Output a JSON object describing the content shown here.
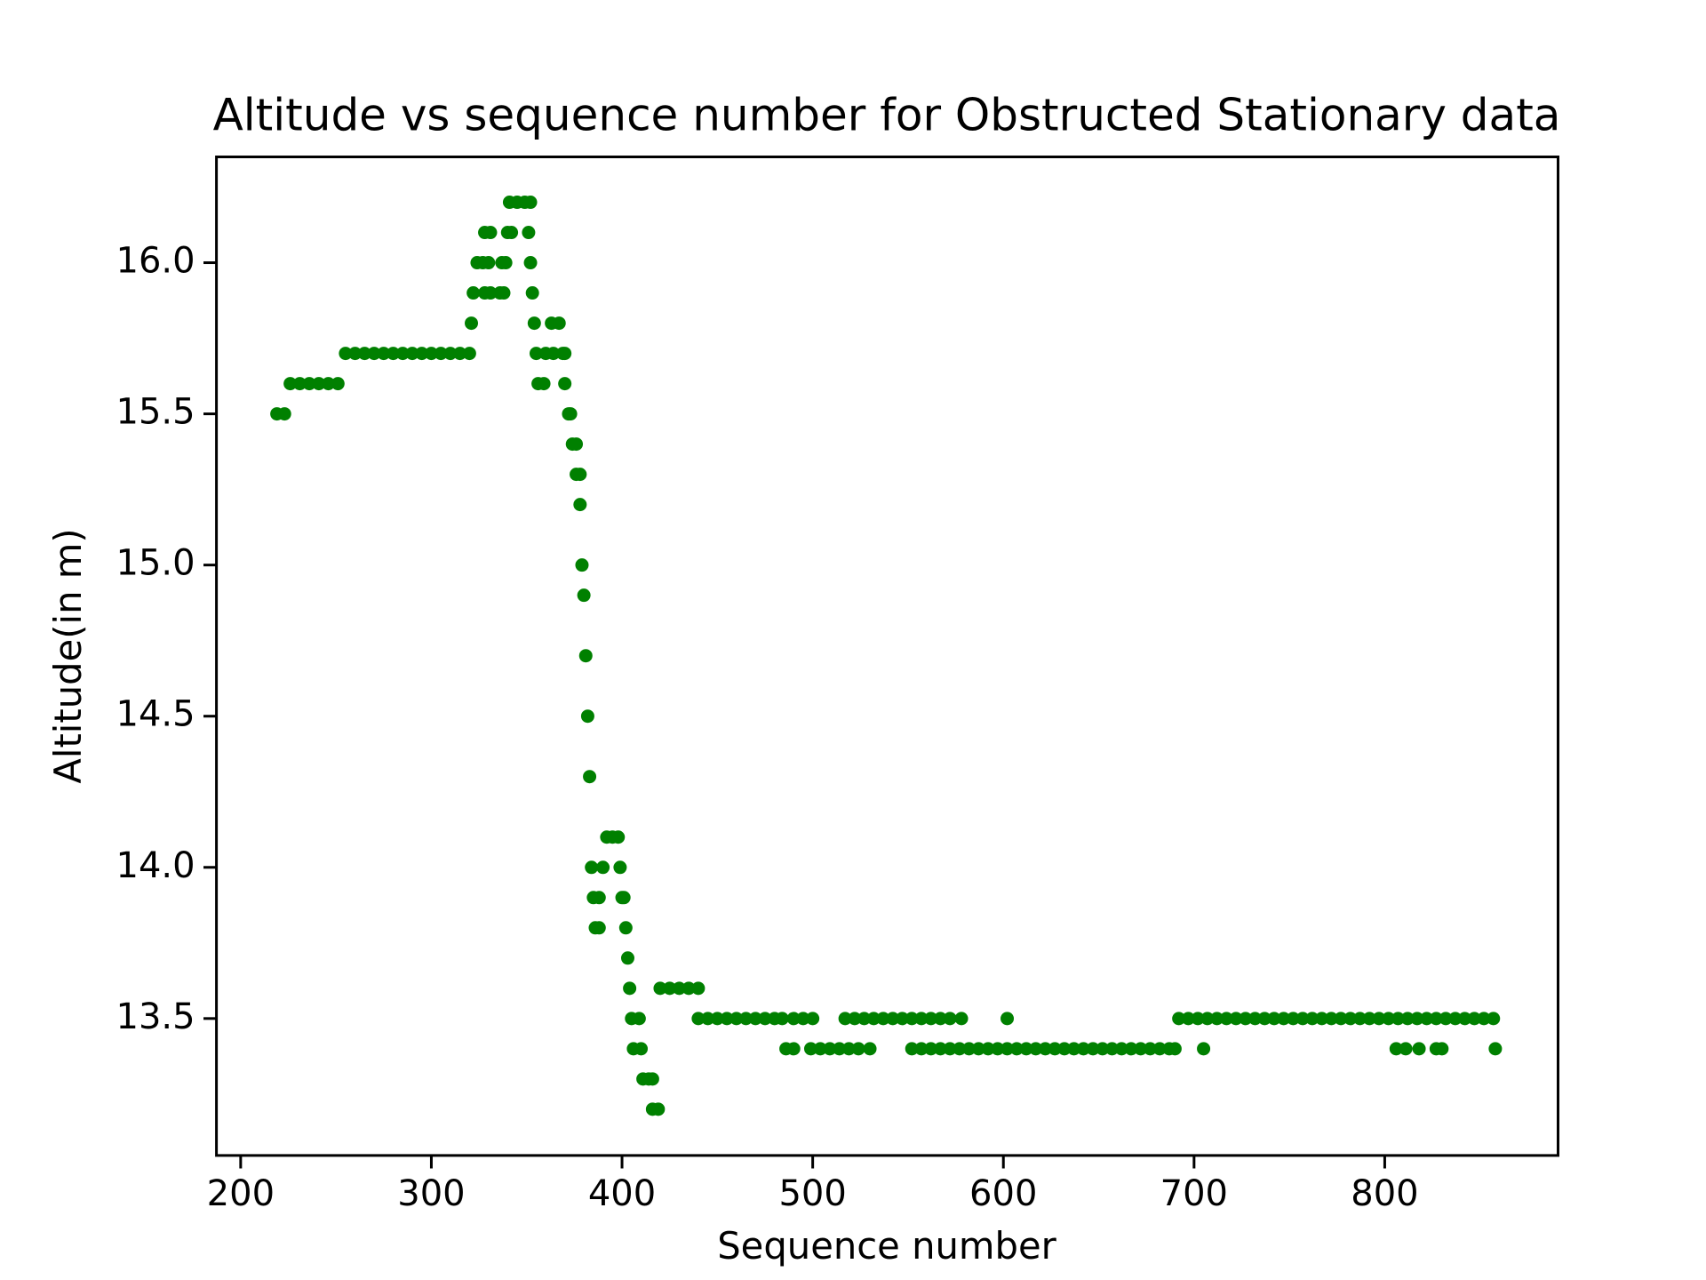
{
  "chart_data": {
    "type": "scatter",
    "title": "Altitude vs sequence number for Obstructed Stationary data",
    "x_label": "Sequence number",
    "y_label": "Altitude(in m)",
    "color": "#008000",
    "xlim": [
      187.3,
      890.9
    ],
    "ylim": [
      13.047,
      16.35
    ],
    "xticks": [
      200,
      300,
      400,
      500,
      600,
      700,
      800
    ],
    "yticks": [
      13.5,
      {
        "value": 14,
        "label": "14.0"
      },
      14.5,
      {
        "value": 15,
        "label": "15.0"
      },
      15.5,
      {
        "value": 16,
        "label": "16.0"
      }
    ],
    "x": [
      219,
      223,
      226,
      231,
      236,
      241,
      246,
      251,
      255,
      260,
      265,
      270,
      275,
      280,
      285,
      290,
      295,
      300,
      305,
      310,
      315,
      320,
      321,
      322,
      328,
      331,
      336,
      338,
      324,
      327,
      330,
      337,
      339,
      352,
      328,
      331,
      340,
      342,
      351,
      341,
      345,
      349,
      352,
      353,
      354,
      363,
      367,
      355,
      360,
      364,
      369,
      370,
      356,
      359,
      370,
      372,
      373,
      374,
      376,
      376,
      378,
      378,
      379,
      380,
      381,
      382,
      383,
      384,
      390,
      399,
      385,
      388,
      400,
      401,
      386,
      388,
      402,
      392,
      395,
      398,
      403,
      404,
      405,
      409,
      406,
      410,
      411,
      414,
      416,
      416,
      419,
      420,
      425,
      430,
      435,
      440,
      440,
      445,
      450,
      455,
      460,
      465,
      470,
      475,
      480,
      484,
      490,
      495,
      500,
      517,
      522,
      527,
      532,
      537,
      542,
      547,
      552,
      557,
      562,
      567,
      572,
      578,
      602,
      486,
      490,
      499,
      504,
      509,
      514,
      519,
      524,
      530,
      552,
      557,
      562,
      567,
      572,
      577,
      582,
      587,
      592,
      597,
      602,
      607,
      612,
      617,
      622,
      627,
      632,
      637,
      642,
      647,
      652,
      657,
      662,
      667,
      672,
      677,
      682,
      687,
      690,
      705,
      806,
      811,
      818,
      827,
      830,
      858,
      692,
      697,
      702,
      707,
      712,
      717,
      722,
      727,
      732,
      737,
      742,
      747,
      752,
      757,
      762,
      767,
      772,
      777,
      782,
      787,
      792,
      797,
      802,
      807,
      812,
      817,
      822,
      827,
      832,
      837,
      842,
      847,
      852,
      857
    ],
    "values": [
      15.5,
      15.5,
      15.6,
      15.6,
      15.6,
      15.6,
      15.6,
      15.6,
      15.7,
      15.7,
      15.7,
      15.7,
      15.7,
      15.7,
      15.7,
      15.7,
      15.7,
      15.7,
      15.7,
      15.7,
      15.7,
      15.7,
      15.8,
      15.9,
      15.9,
      15.9,
      15.9,
      15.9,
      16.0,
      16.0,
      16.0,
      16.0,
      16.0,
      16.0,
      16.1,
      16.1,
      16.1,
      16.1,
      16.1,
      16.2,
      16.2,
      16.2,
      16.2,
      15.9,
      15.8,
      15.8,
      15.8,
      15.7,
      15.7,
      15.7,
      15.7,
      15.7,
      15.6,
      15.6,
      15.6,
      15.5,
      15.5,
      15.4,
      15.4,
      15.3,
      15.3,
      15.2,
      15.0,
      14.9,
      14.7,
      14.5,
      14.3,
      14.0,
      14.0,
      14.0,
      13.9,
      13.9,
      13.9,
      13.9,
      13.8,
      13.8,
      13.8,
      14.1,
      14.1,
      14.1,
      13.7,
      13.6,
      13.5,
      13.5,
      13.4,
      13.4,
      13.3,
      13.3,
      13.3,
      13.2,
      13.2,
      13.6,
      13.6,
      13.6,
      13.6,
      13.6,
      13.5,
      13.5,
      13.5,
      13.5,
      13.5,
      13.5,
      13.5,
      13.5,
      13.5,
      13.5,
      13.5,
      13.5,
      13.5,
      13.5,
      13.5,
      13.5,
      13.5,
      13.5,
      13.5,
      13.5,
      13.5,
      13.5,
      13.5,
      13.5,
      13.5,
      13.5,
      13.5,
      13.4,
      13.4,
      13.4,
      13.4,
      13.4,
      13.4,
      13.4,
      13.4,
      13.4,
      13.4,
      13.4,
      13.4,
      13.4,
      13.4,
      13.4,
      13.4,
      13.4,
      13.4,
      13.4,
      13.4,
      13.4,
      13.4,
      13.4,
      13.4,
      13.4,
      13.4,
      13.4,
      13.4,
      13.4,
      13.4,
      13.4,
      13.4,
      13.4,
      13.4,
      13.4,
      13.4,
      13.4,
      13.4,
      13.4,
      13.4,
      13.4,
      13.4,
      13.4,
      13.4,
      13.4,
      13.5,
      13.5,
      13.5,
      13.5,
      13.5,
      13.5,
      13.5,
      13.5,
      13.5,
      13.5,
      13.5,
      13.5,
      13.5,
      13.5,
      13.5,
      13.5,
      13.5,
      13.5,
      13.5,
      13.5,
      13.5,
      13.5,
      13.5,
      13.5,
      13.5,
      13.5,
      13.5,
      13.5,
      13.5,
      13.5,
      13.5,
      13.5,
      13.5,
      13.5
    ]
  }
}
